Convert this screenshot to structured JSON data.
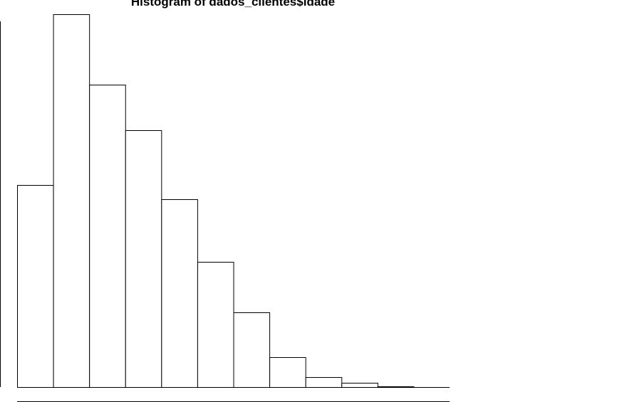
{
  "chart_data": {
    "type": "bar",
    "title": "Histogram of dados_clientes$idade",
    "bins": 12,
    "values": [
      284,
      524,
      425,
      361,
      264,
      176,
      105,
      42,
      14,
      6,
      1,
      0
    ],
    "ylim": [
      0,
      524
    ],
    "colors": {
      "bar_fill": "#ffffff",
      "bar_stroke": "#000000",
      "axis": "#000000"
    }
  }
}
